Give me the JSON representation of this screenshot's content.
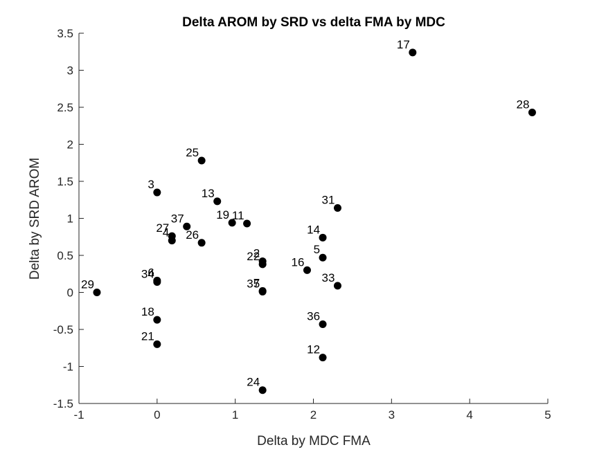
{
  "chart_data": {
    "type": "scatter",
    "title": "Delta AROM by SRD vs delta FMA by MDC",
    "xlabel": "Delta by MDC FMA",
    "ylabel": "Delta by SRD AROM",
    "xlim": [
      -1,
      5
    ],
    "ylim": [
      -1.5,
      3.5
    ],
    "xticks": [
      -1,
      0,
      1,
      2,
      3,
      4,
      5
    ],
    "yticks": [
      -1.5,
      -1,
      -0.5,
      0,
      0.5,
      1,
      1.5,
      2,
      2.5,
      3,
      3.5
    ],
    "xtick_labels": [
      "-1",
      "0",
      "1",
      "2",
      "3",
      "4",
      "5"
    ],
    "ytick_labels": [
      "-1.5",
      "-1",
      "-0.5",
      "0",
      "0.5",
      "1",
      "1.5",
      "2",
      "2.5",
      "3",
      "3.5"
    ],
    "grid": false,
    "marker_color": "#000000",
    "points": [
      {
        "label": "17",
        "x": 3.27,
        "y": 3.24
      },
      {
        "label": "28",
        "x": 4.8,
        "y": 2.43
      },
      {
        "label": "25",
        "x": 0.57,
        "y": 1.78
      },
      {
        "label": "3",
        "x": 0.0,
        "y": 1.35
      },
      {
        "label": "13",
        "x": 0.77,
        "y": 1.23
      },
      {
        "label": "31",
        "x": 2.31,
        "y": 1.14
      },
      {
        "label": "19",
        "x": 0.96,
        "y": 0.94
      },
      {
        "label": "11",
        "x": 1.15,
        "y": 0.93
      },
      {
        "label": "37",
        "x": 0.38,
        "y": 0.89
      },
      {
        "label": "14",
        "x": 2.12,
        "y": 0.74
      },
      {
        "label": "27",
        "x": 0.19,
        "y": 0.76
      },
      {
        "label": "4",
        "x": 0.19,
        "y": 0.7
      },
      {
        "label": "26",
        "x": 0.57,
        "y": 0.67
      },
      {
        "label": "5",
        "x": 2.12,
        "y": 0.47
      },
      {
        "label": "2",
        "x": 1.35,
        "y": 0.42
      },
      {
        "label": "22",
        "x": 1.35,
        "y": 0.38
      },
      {
        "label": "16",
        "x": 1.92,
        "y": 0.3
      },
      {
        "label": "6",
        "x": 0.0,
        "y": 0.16
      },
      {
        "label": "34",
        "x": 0.0,
        "y": 0.14
      },
      {
        "label": "33",
        "x": 2.31,
        "y": 0.09
      },
      {
        "label": "7",
        "x": 1.35,
        "y": 0.02
      },
      {
        "label": "35",
        "x": 1.35,
        "y": 0.01
      },
      {
        "label": "29",
        "x": -0.77,
        "y": 0.0
      },
      {
        "label": "18",
        "x": 0.0,
        "y": -0.37
      },
      {
        "label": "36",
        "x": 2.12,
        "y": -0.43
      },
      {
        "label": "21",
        "x": 0.0,
        "y": -0.7
      },
      {
        "label": "12",
        "x": 2.12,
        "y": -0.88
      },
      {
        "label": "24",
        "x": 1.35,
        "y": -1.32
      }
    ]
  }
}
